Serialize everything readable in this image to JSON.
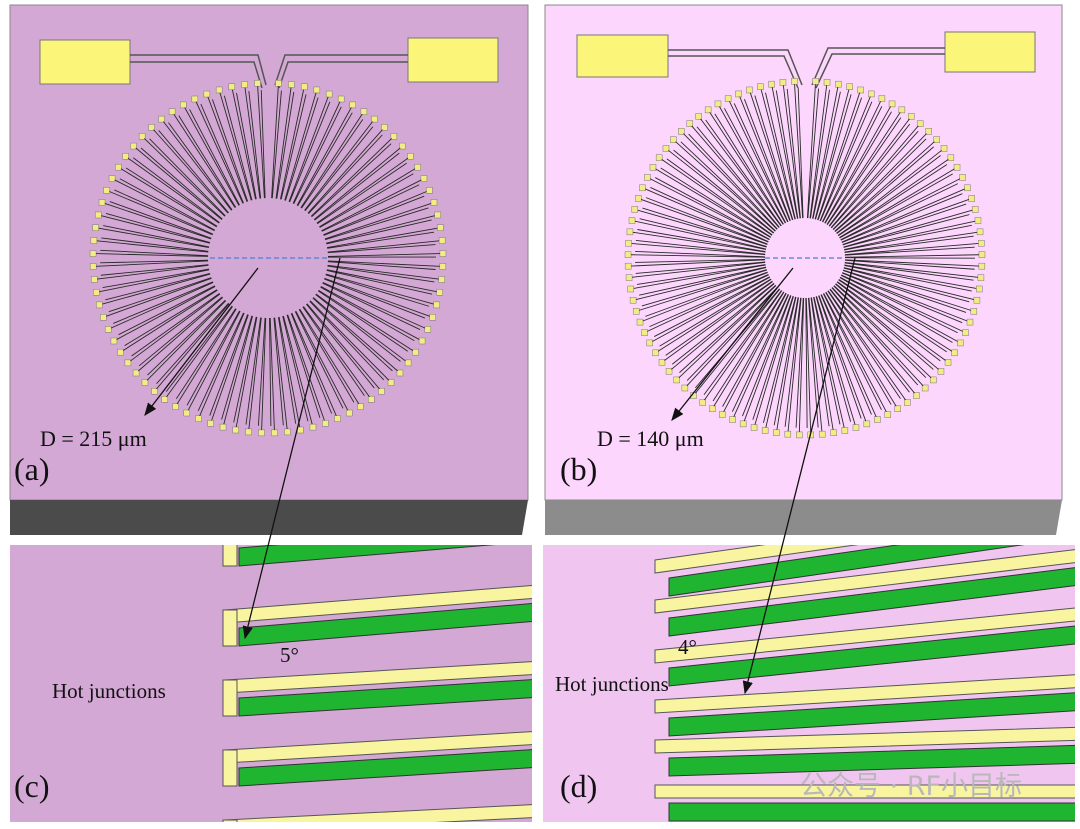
{
  "panels": [
    {
      "label": "(a)",
      "diameter_label": "D = 215 μm"
    },
    {
      "label": "(b)",
      "diameter_label": "D = 140 μm"
    }
  ],
  "insets": [
    {
      "label": "(c)",
      "caption": "Hot junctions",
      "angle_label": "5°"
    },
    {
      "label": "(d)",
      "caption": "Hot junctions",
      "angle_label": "4°"
    }
  ],
  "watermark": "公众号 · RF小目标"
}
